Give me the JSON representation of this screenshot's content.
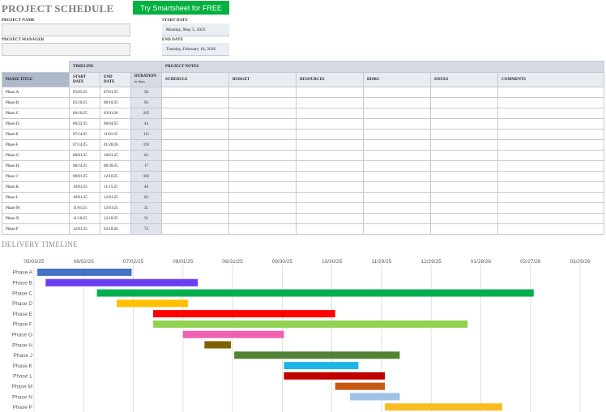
{
  "header": {
    "title": "PROJECT SCHEDULE",
    "cta_label": "Try Smartsheet for FREE"
  },
  "fields": {
    "project_name_label": "PROJECT NAME",
    "project_name_value": "",
    "project_manager_label": "PROJECT MANAGER",
    "project_manager_value": "",
    "start_date_label": "START DATE",
    "start_date_value": "Monday, May 5, 2025",
    "end_date_label": "END DATE",
    "end_date_value": "Tuesday, February 10, 2026"
  },
  "table": {
    "group_timeline": "TIMELINE",
    "group_notes": "PROJECT NOTES",
    "col_phase": "PHASE TITLE",
    "col_start_1": "START",
    "col_start_2": "DATE",
    "col_end_1": "END",
    "col_end_2": "DATE",
    "col_duration": "DURATION",
    "col_duration_sub": "in days",
    "col_schedule": "SCHEDULE",
    "col_budget": "BUDGET",
    "col_resources": "RESOURCES",
    "col_risks": "RISKS",
    "col_issues": "ISSUES",
    "col_comments": "COMMENTS",
    "rows": [
      {
        "phase": "Phase A",
        "start": "05/05/25",
        "end": "07/01/25",
        "duration": "58"
      },
      {
        "phase": "Phase B",
        "start": "05/10/25",
        "end": "08/10/25",
        "duration": "93"
      },
      {
        "phase": "Phase C",
        "start": "06/10/25",
        "end": "03/01/26",
        "duration": "265"
      },
      {
        "phase": "Phase D",
        "start": "06/22/25",
        "end": "08/04/25",
        "duration": "44"
      },
      {
        "phase": "Phase E",
        "start": "07/14/25",
        "end": "11/01/25",
        "duration": "111"
      },
      {
        "phase": "Phase F",
        "start": "07/14/25",
        "end": "01/20/26",
        "duration": "191"
      },
      {
        "phase": "Phase G",
        "start": "08/01/25",
        "end": "10/01/25",
        "duration": "62"
      },
      {
        "phase": "Phase H",
        "start": "08/14/25",
        "end": "08/30/25",
        "duration": "17"
      },
      {
        "phase": "Phase J",
        "start": "09/01/25",
        "end": "12/10/25",
        "duration": "101"
      },
      {
        "phase": "Phase K",
        "start": "10/01/25",
        "end": "11/15/25",
        "duration": "46"
      },
      {
        "phase": "Phase L",
        "start": "10/01/25",
        "end": "12/01/25",
        "duration": "62"
      },
      {
        "phase": "Phase M",
        "start": "11/01/25",
        "end": "12/01/25",
        "duration": "31"
      },
      {
        "phase": "Phase N",
        "start": "11/10/25",
        "end": "12/10/25",
        "duration": "31"
      },
      {
        "phase": "Phase P",
        "start": "12/01/25",
        "end": "02/10/26",
        "duration": "72"
      }
    ]
  },
  "chart_data": {
    "type": "bar",
    "title": "DELIVERY TIMELINE",
    "orientation": "horizontal-gantt",
    "x_ticks": [
      "05/03/25",
      "06/02/25",
      "07/02/25",
      "08/01/25",
      "08/31/25",
      "09/30/25",
      "10/30/25",
      "11/29/25",
      "12/29/25",
      "01/28/26",
      "02/27/26",
      "03/29/26"
    ],
    "x_range": [
      "05/03/25",
      "03/29/26"
    ],
    "grid": true,
    "series": [
      {
        "phase": "Phase A",
        "start": "05/05/25",
        "end": "07/01/25",
        "color": "#4472c4"
      },
      {
        "phase": "Phase B",
        "start": "05/10/25",
        "end": "08/10/25",
        "color": "#6b3df0"
      },
      {
        "phase": "Phase C",
        "start": "06/10/25",
        "end": "03/01/26",
        "color": "#00b050"
      },
      {
        "phase": "Phase D",
        "start": "06/22/25",
        "end": "08/04/25",
        "color": "#ffc000"
      },
      {
        "phase": "Phase E",
        "start": "07/14/25",
        "end": "11/01/25",
        "color": "#ff0000"
      },
      {
        "phase": "Phase F",
        "start": "07/14/25",
        "end": "01/20/26",
        "color": "#92d050"
      },
      {
        "phase": "Phase G",
        "start": "08/01/25",
        "end": "10/01/25",
        "color": "#f060b0"
      },
      {
        "phase": "Phase H",
        "start": "08/14/25",
        "end": "08/30/25",
        "color": "#7f6000"
      },
      {
        "phase": "Phase J",
        "start": "09/01/25",
        "end": "12/10/25",
        "color": "#548235"
      },
      {
        "phase": "Phase K",
        "start": "10/01/25",
        "end": "11/15/25",
        "color": "#1fb4e8"
      },
      {
        "phase": "Phase L",
        "start": "10/01/25",
        "end": "12/01/25",
        "color": "#c00000"
      },
      {
        "phase": "Phase M",
        "start": "11/01/25",
        "end": "12/01/25",
        "color": "#c55a11"
      },
      {
        "phase": "Phase N",
        "start": "11/10/25",
        "end": "12/10/25",
        "color": "#9dc3e6"
      },
      {
        "phase": "Phase P",
        "start": "12/01/25",
        "end": "02/10/26",
        "color": "#fbbc23"
      }
    ]
  }
}
